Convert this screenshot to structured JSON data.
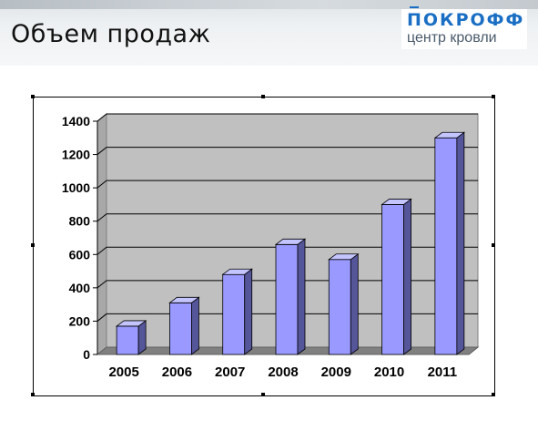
{
  "slide": {
    "title": "Объем продаж"
  },
  "logo": {
    "name": "ПОКРОФФ",
    "tagline": "центр кровли",
    "color": "#1a6fc4"
  },
  "chart_data": {
    "type": "bar",
    "title": "",
    "xlabel": "",
    "ylabel": "",
    "categories": [
      "2005",
      "2006",
      "2007",
      "2008",
      "2009",
      "2010",
      "2011"
    ],
    "series": [
      {
        "values": [
          170,
          310,
          480,
          660,
          570,
          900,
          1300
        ]
      }
    ],
    "ylim": [
      0,
      1400
    ],
    "yticks": [
      "0",
      "200",
      "400",
      "600",
      "800",
      "1000",
      "1200",
      "1400"
    ],
    "grid": true,
    "legend": "none",
    "bar_color": "#9999ff",
    "bar_side_color": "#55559a",
    "bar_top_color": "#c4c4ff",
    "plot_bg": "#c0c0c0",
    "floor_color": "#808080"
  }
}
